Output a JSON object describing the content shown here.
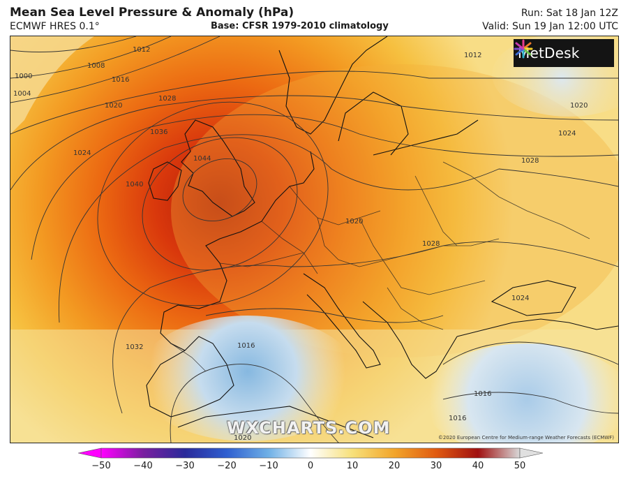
{
  "header": {
    "title": "Mean Sea Level Pressure & Anomaly (hPa)",
    "subtitle": "ECMWF HRES 0.1°",
    "base": "Base: CFSR 1979-2010 climatology",
    "run": "Run: Sat 18 Jan 12Z",
    "valid": "Valid: Sun 19 Jan 12:00 UTC"
  },
  "map": {
    "logo_text": "MetDesk",
    "watermark": "WXCHARTS.COM",
    "copyright": "©2020 European Centre for Medium-range Weather Forecasts (ECMWF)",
    "isobar_labels": [
      "1012",
      "1008",
      "1004",
      "1000",
      "1016",
      "1020",
      "1028",
      "1036",
      "1024",
      "1040",
      "1044",
      "1032",
      "1016",
      "1020",
      "1024",
      "1028",
      "1012",
      "1028",
      "1024",
      "1016",
      "1016",
      "1020",
      "1020"
    ]
  },
  "colorbar": {
    "ticks": [
      "−50",
      "−40",
      "−30",
      "−20",
      "−10",
      "0",
      "10",
      "20",
      "30",
      "40",
      "50"
    ],
    "colors": [
      "#ff00ff",
      "#7a1fa0",
      "#2a2a9a",
      "#2f5fd0",
      "#6fb0e6",
      "#ffffff",
      "#f7e07a",
      "#f2a52a",
      "#e05a10",
      "#a01010",
      "#d8d8d8"
    ]
  }
}
